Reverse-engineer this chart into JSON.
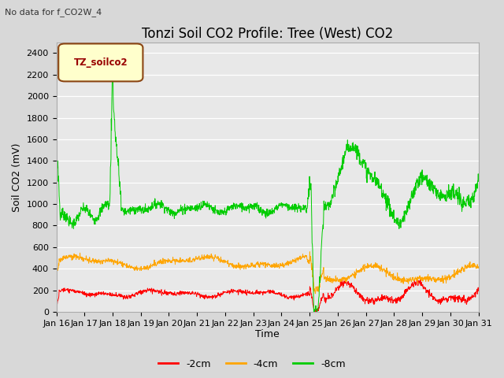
{
  "title": "Tonzi Soil CO2 Profile: Tree (West) CO2",
  "subtitle": "No data for f_CO2W_4",
  "ylabel": "Soil CO2 (mV)",
  "xlabel": "Time",
  "legend_label": "TZ_soilco2",
  "series_labels": [
    "-2cm",
    "-4cm",
    "-8cm"
  ],
  "series_colors": [
    "#ff0000",
    "#ffa500",
    "#00cc00"
  ],
  "ylim": [
    0,
    2500
  ],
  "yticks": [
    0,
    200,
    400,
    600,
    800,
    1000,
    1200,
    1400,
    1600,
    1800,
    2000,
    2200,
    2400
  ],
  "xtick_labels": [
    "Jan 16",
    "Jan 17",
    "Jan 18",
    "Jan 19",
    "Jan 20",
    "Jan 21",
    "Jan 22",
    "Jan 23",
    "Jan 24",
    "Jan 25",
    "Jan 26",
    "Jan 27",
    "Jan 28",
    "Jan 29",
    "Jan 30",
    "Jan 31"
  ],
  "n_points": 1500,
  "background_color": "#d8d8d8",
  "plot_bg_color": "#e8e8e8",
  "title_fontsize": 12,
  "axis_fontsize": 9,
  "tick_fontsize": 8,
  "legend_box_color": "#ffffcc",
  "legend_box_edge": "#8B4513"
}
